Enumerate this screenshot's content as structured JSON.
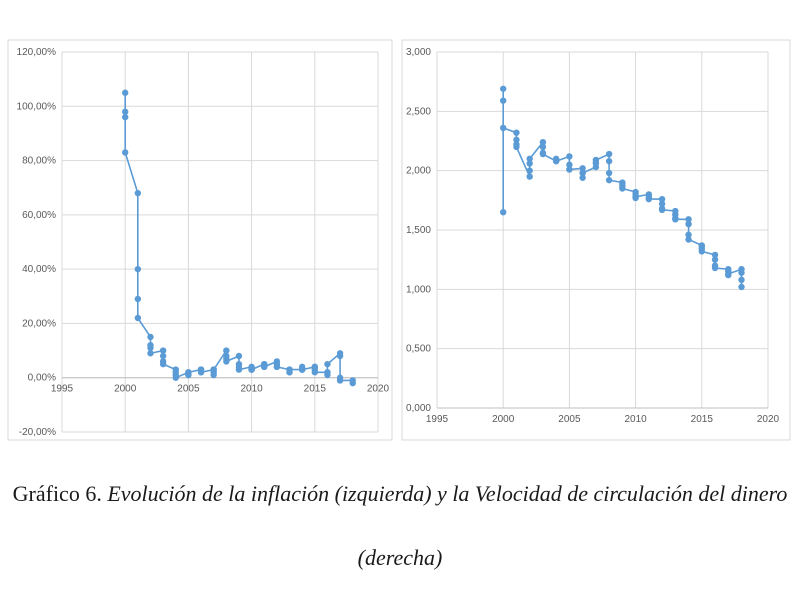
{
  "chart_data": [
    {
      "type": "line",
      "xlim": [
        1995,
        2020
      ],
      "ylim": [
        -20,
        120
      ],
      "xticks": [
        "1995",
        "2000",
        "2005",
        "2010",
        "2015",
        "2020"
      ],
      "yticks": [
        "-20,00%",
        "0,00%",
        "20,00%",
        "40,00%",
        "60,00%",
        "80,00%",
        "100,00%",
        "120,00%"
      ],
      "grid": true,
      "color": "#5b9bd5",
      "series": [
        {
          "x": [
            2000.0,
            2000.0,
            2000.0,
            2000.0,
            2001.0,
            2001.0,
            2001.0,
            2001.0,
            2002.0,
            2002.0,
            2002.0,
            2002.0,
            2003.0,
            2003.0,
            2003.0,
            2003.0,
            2004.0,
            2004.0,
            2004.0,
            2004.0,
            2005.0,
            2005.0,
            2005.0,
            2005.0,
            2006.0,
            2006.0,
            2006.0,
            2006.0,
            2007.0,
            2007.0,
            2007.0,
            2007.0,
            2008.0,
            2008.0,
            2008.0,
            2008.0,
            2009.0,
            2009.0,
            2009.0,
            2009.0,
            2010.0,
            2010.0,
            2010.0,
            2010.0,
            2011.0,
            2011.0,
            2011.0,
            2011.0,
            2012.0,
            2012.0,
            2012.0,
            2012.0,
            2013.0,
            2013.0,
            2013.0,
            2013.0,
            2014.0,
            2014.0,
            2014.0,
            2014.0,
            2015.0,
            2015.0,
            2015.0,
            2015.0,
            2016.0,
            2016.0,
            2016.0,
            2016.0,
            2017.0,
            2017.0,
            2017.0,
            2017.0,
            2018.0,
            2018.0
          ],
          "y": [
            105,
            98,
            96,
            83,
            68,
            40,
            29,
            22,
            15,
            12,
            11,
            9,
            10,
            8,
            6,
            5,
            3,
            2,
            1,
            0,
            2,
            1,
            1,
            2,
            3,
            3,
            2,
            2,
            3,
            2,
            1,
            3,
            10,
            8,
            7,
            6,
            8,
            5,
            4,
            3,
            4,
            3,
            3,
            3,
            5,
            5,
            4,
            4,
            6,
            5,
            4,
            4,
            3,
            2,
            2,
            3,
            3,
            4,
            3,
            3,
            4,
            4,
            3,
            2,
            2,
            1,
            2,
            5,
            9,
            8,
            0,
            -1,
            -1,
            -2
          ]
        }
      ]
    },
    {
      "type": "line",
      "xlim": [
        1995,
        2020
      ],
      "ylim": [
        0,
        3
      ],
      "xticks": [
        "1995",
        "2000",
        "2005",
        "2010",
        "2015",
        "2020"
      ],
      "yticks": [
        "0,000",
        "0,500",
        "1,000",
        "1,500",
        "2,000",
        "2,500",
        "3,000"
      ],
      "grid": true,
      "color": "#5b9bd5",
      "series": [
        {
          "x": [
            2000.0,
            2000.0,
            2000.0,
            2000.0,
            2001.0,
            2001.0,
            2001.0,
            2001.0,
            2002.0,
            2002.0,
            2002.0,
            2002.0,
            2003.0,
            2003.0,
            2003.0,
            2003.0,
            2004.0,
            2004.0,
            2004.0,
            2004.0,
            2005.0,
            2005.0,
            2005.0,
            2005.0,
            2006.0,
            2006.0,
            2006.0,
            2006.0,
            2007.0,
            2007.0,
            2007.0,
            2007.0,
            2008.0,
            2008.0,
            2008.0,
            2008.0,
            2009.0,
            2009.0,
            2009.0,
            2009.0,
            2010.0,
            2010.0,
            2010.0,
            2010.0,
            2011.0,
            2011.0,
            2011.0,
            2011.0,
            2012.0,
            2012.0,
            2012.0,
            2012.0,
            2013.0,
            2013.0,
            2013.0,
            2013.0,
            2014.0,
            2014.0,
            2014.0,
            2014.0,
            2015.0,
            2015.0,
            2015.0,
            2015.0,
            2016.0,
            2016.0,
            2016.0,
            2016.0,
            2017.0,
            2017.0,
            2017.0,
            2017.0,
            2018.0,
            2018.0,
            2018.0,
            2018.0
          ],
          "y": [
            1.65,
            2.69,
            2.59,
            2.36,
            2.32,
            2.26,
            2.22,
            2.2,
            1.95,
            2.0,
            2.06,
            2.1,
            2.24,
            2.2,
            2.15,
            2.14,
            2.08,
            2.09,
            2.1,
            2.08,
            2.12,
            2.05,
            2.01,
            2.01,
            2.02,
            1.98,
            1.94,
            1.98,
            2.03,
            2.06,
            2.07,
            2.09,
            2.14,
            2.08,
            1.98,
            1.92,
            1.9,
            1.89,
            1.87,
            1.85,
            1.82,
            1.8,
            1.77,
            1.78,
            1.8,
            1.79,
            1.77,
            1.76,
            1.76,
            1.72,
            1.68,
            1.67,
            1.66,
            1.63,
            1.6,
            1.59,
            1.59,
            1.55,
            1.46,
            1.42,
            1.37,
            1.36,
            1.34,
            1.32,
            1.29,
            1.25,
            1.2,
            1.18,
            1.17,
            1.15,
            1.12,
            1.13,
            1.17,
            1.14,
            1.08,
            1.02
          ]
        }
      ]
    }
  ],
  "caption": {
    "prefix": "Gráfico 6. ",
    "text": "Evolución de la inflación (izquierda) y la Velocidad de circulación del dinero (derecha)"
  }
}
